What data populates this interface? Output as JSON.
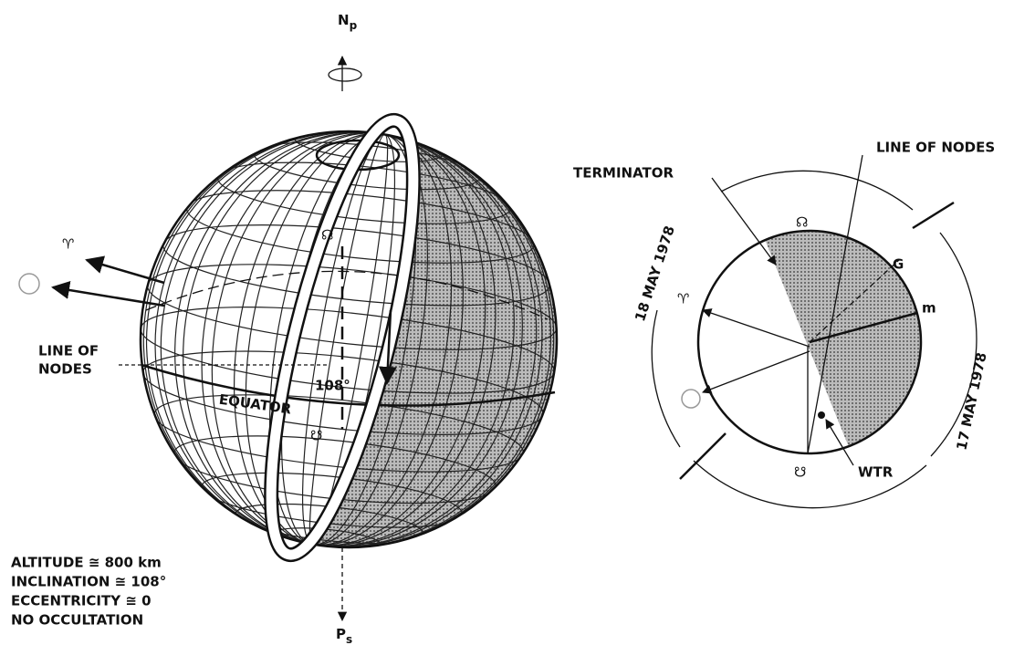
{
  "left_diagram": {
    "north_pole": {
      "letter": "N",
      "subscript": "p"
    },
    "south_pole": {
      "letter": "P",
      "subscript": "s"
    },
    "aries": "♈",
    "line_of_nodes": [
      "LINE OF",
      "NODES"
    ],
    "angle": "108°",
    "equator": "EQUATOR",
    "ascending_node": "☊",
    "descending_node": "☋",
    "parameters": [
      "ALTITUDE ≅ 800 km",
      "INCLINATION ≅ 108°",
      "ECCENTRICITY ≅ 0",
      "NO OCCULTATION"
    ]
  },
  "right_diagram": {
    "terminator": "TERMINATOR",
    "line_of_nodes": "LINE OF NODES",
    "date_left": "18 MAY 1978",
    "date_right": "17 MAY 1978",
    "ascending_node": "☊",
    "descending_node": "☋",
    "aries": "♈",
    "g": "G",
    "m": "m",
    "wtr": "WTR"
  }
}
